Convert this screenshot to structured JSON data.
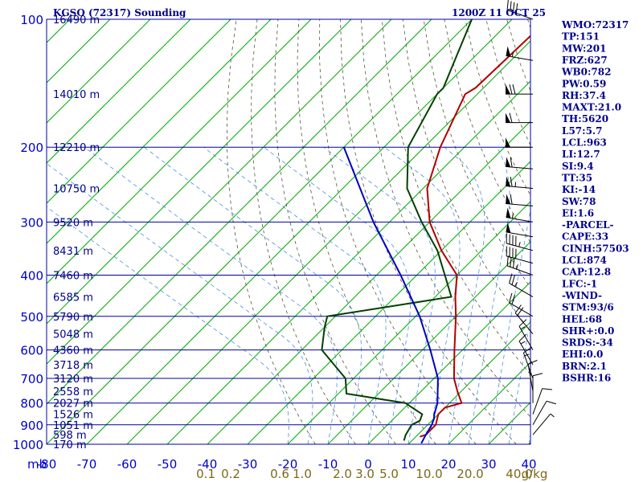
{
  "header": {
    "title": "KGSO (72317) Sounding",
    "valid": "1200Z 11 OCT 25"
  },
  "indices": [
    "WMO:72317",
    "TP:151",
    "MW:201",
    "FRZ:627",
    "WB0:782",
    "PW:0.59",
    "RH:37.4",
    "MAXT:21.0",
    "TH:5620",
    "L57:5.7",
    "LCL:963",
    "LI:12.7",
    "SI:9.4",
    "TT:35",
    "KI:-14",
    "SW:78",
    "EI:1.6",
    "-PARCEL-",
    "CAPE:33",
    "CINH:57503",
    "LCL:874",
    "CAP:12.8",
    "LFC:-1",
    "-WIND-",
    "STM:93/6",
    "HEL:68",
    "SHR+:0.0",
    "SRDS:-34",
    "EHI:0.0",
    "BRN:2.1",
    "BSHR:16"
  ],
  "axis": {
    "pressure_unit": "mb",
    "mixing_ratio_unit": "g/kg"
  },
  "chart_data": {
    "type": "line",
    "chart": "skew-T log-P sounding",
    "pressure_levels_mb": [
      100,
      200,
      300,
      400,
      500,
      600,
      700,
      800,
      900,
      1000
    ],
    "height_labels": [
      {
        "p": 100,
        "text": "16490 m"
      },
      {
        "p": 150,
        "text": "14010 m"
      },
      {
        "p": 200,
        "text": "12210 m"
      },
      {
        "p": 250,
        "text": "10750 m"
      },
      {
        "p": 300,
        "text": "9520 m"
      },
      {
        "p": 350,
        "text": "8431 m"
      },
      {
        "p": 400,
        "text": "7460 m"
      },
      {
        "p": 450,
        "text": "6585 m"
      },
      {
        "p": 500,
        "text": "5790 m"
      },
      {
        "p": 550,
        "text": "5048 m"
      },
      {
        "p": 600,
        "text": "4360 m"
      },
      {
        "p": 650,
        "text": "3718 m"
      },
      {
        "p": 700,
        "text": "3120 m"
      },
      {
        "p": 750,
        "text": "2558 m"
      },
      {
        "p": 800,
        "text": "2027 m"
      },
      {
        "p": 850,
        "text": "1526 m"
      },
      {
        "p": 900,
        "text": "1051 m"
      },
      {
        "p": 950,
        "text": "598 m"
      },
      {
        "p": 1000,
        "text": "170 m"
      }
    ],
    "temperature_ticks_c": [
      -80,
      -70,
      -60,
      -50,
      -40,
      -30,
      -20,
      -10,
      0,
      10,
      20,
      30,
      40
    ],
    "mixing_ratio_ticks": [
      "0.1",
      "0.2",
      "0.6",
      "1.0",
      "2.0",
      "3.0",
      "5.0",
      "10.0",
      "20.0",
      "40.0"
    ],
    "series": [
      {
        "name": "Temperature",
        "color": "#b00000",
        "points": [
          [
            100,
            -61
          ],
          [
            145,
            -62
          ],
          [
            150,
            -63
          ],
          [
            200,
            -56
          ],
          [
            250,
            -49
          ],
          [
            300,
            -40
          ],
          [
            350,
            -30
          ],
          [
            400,
            -20
          ],
          [
            450,
            -15
          ],
          [
            500,
            -10
          ],
          [
            600,
            -2
          ],
          [
            700,
            5
          ],
          [
            750,
            9
          ],
          [
            800,
            13
          ],
          [
            820,
            10
          ],
          [
            850,
            10
          ],
          [
            900,
            12
          ],
          [
            950,
            12
          ],
          [
            960,
            11
          ]
        ]
      },
      {
        "name": "Dewpoint",
        "color": "#004000",
        "points": [
          [
            100,
            -80
          ],
          [
            145,
            -70
          ],
          [
            150,
            -70
          ],
          [
            200,
            -64
          ],
          [
            250,
            -54
          ],
          [
            300,
            -42
          ],
          [
            350,
            -31
          ],
          [
            400,
            -23
          ],
          [
            450,
            -16
          ],
          [
            500,
            -42
          ],
          [
            530,
            -40
          ],
          [
            600,
            -35
          ],
          [
            700,
            -22
          ],
          [
            760,
            -18
          ],
          [
            800,
            -1
          ],
          [
            850,
            6
          ],
          [
            880,
            7
          ],
          [
            900,
            6
          ],
          [
            950,
            7
          ],
          [
            980,
            8
          ]
        ]
      },
      {
        "name": "Parcel",
        "color": "#0000c0",
        "points": [
          [
            200,
            -80
          ],
          [
            300,
            -54
          ],
          [
            400,
            -34
          ],
          [
            500,
            -19
          ],
          [
            600,
            -8
          ],
          [
            700,
            1
          ],
          [
            800,
            7
          ],
          [
            850,
            9
          ],
          [
            870,
            10
          ],
          [
            900,
            11
          ],
          [
            950,
            12
          ],
          [
            995,
            13
          ]
        ]
      }
    ],
    "winds": [
      {
        "p": 100,
        "dir": 290,
        "spd": 40
      },
      {
        "p": 125,
        "dir": 280,
        "spd": 55
      },
      {
        "p": 150,
        "dir": 270,
        "spd": 70
      },
      {
        "p": 175,
        "dir": 270,
        "spd": 60
      },
      {
        "p": 200,
        "dir": 270,
        "spd": 50
      },
      {
        "p": 225,
        "dir": 275,
        "spd": 60
      },
      {
        "p": 250,
        "dir": 275,
        "spd": 65
      },
      {
        "p": 275,
        "dir": 275,
        "spd": 60
      },
      {
        "p": 300,
        "dir": 280,
        "spd": 55
      },
      {
        "p": 325,
        "dir": 280,
        "spd": 50
      },
      {
        "p": 350,
        "dir": 285,
        "spd": 45
      },
      {
        "p": 375,
        "dir": 285,
        "spd": 40
      },
      {
        "p": 400,
        "dir": 290,
        "spd": 35
      },
      {
        "p": 450,
        "dir": 300,
        "spd": 25
      },
      {
        "p": 500,
        "dir": 300,
        "spd": 20
      },
      {
        "p": 550,
        "dir": 320,
        "spd": 20
      },
      {
        "p": 600,
        "dir": 330,
        "spd": 15
      },
      {
        "p": 650,
        "dir": 330,
        "spd": 15
      },
      {
        "p": 700,
        "dir": 340,
        "spd": 15
      },
      {
        "p": 750,
        "dir": 350,
        "spd": 10
      },
      {
        "p": 800,
        "dir": 360,
        "spd": 10
      },
      {
        "p": 850,
        "dir": 20,
        "spd": 10
      },
      {
        "p": 900,
        "dir": 30,
        "spd": 10
      },
      {
        "p": 950,
        "dir": 40,
        "spd": 5
      }
    ]
  }
}
